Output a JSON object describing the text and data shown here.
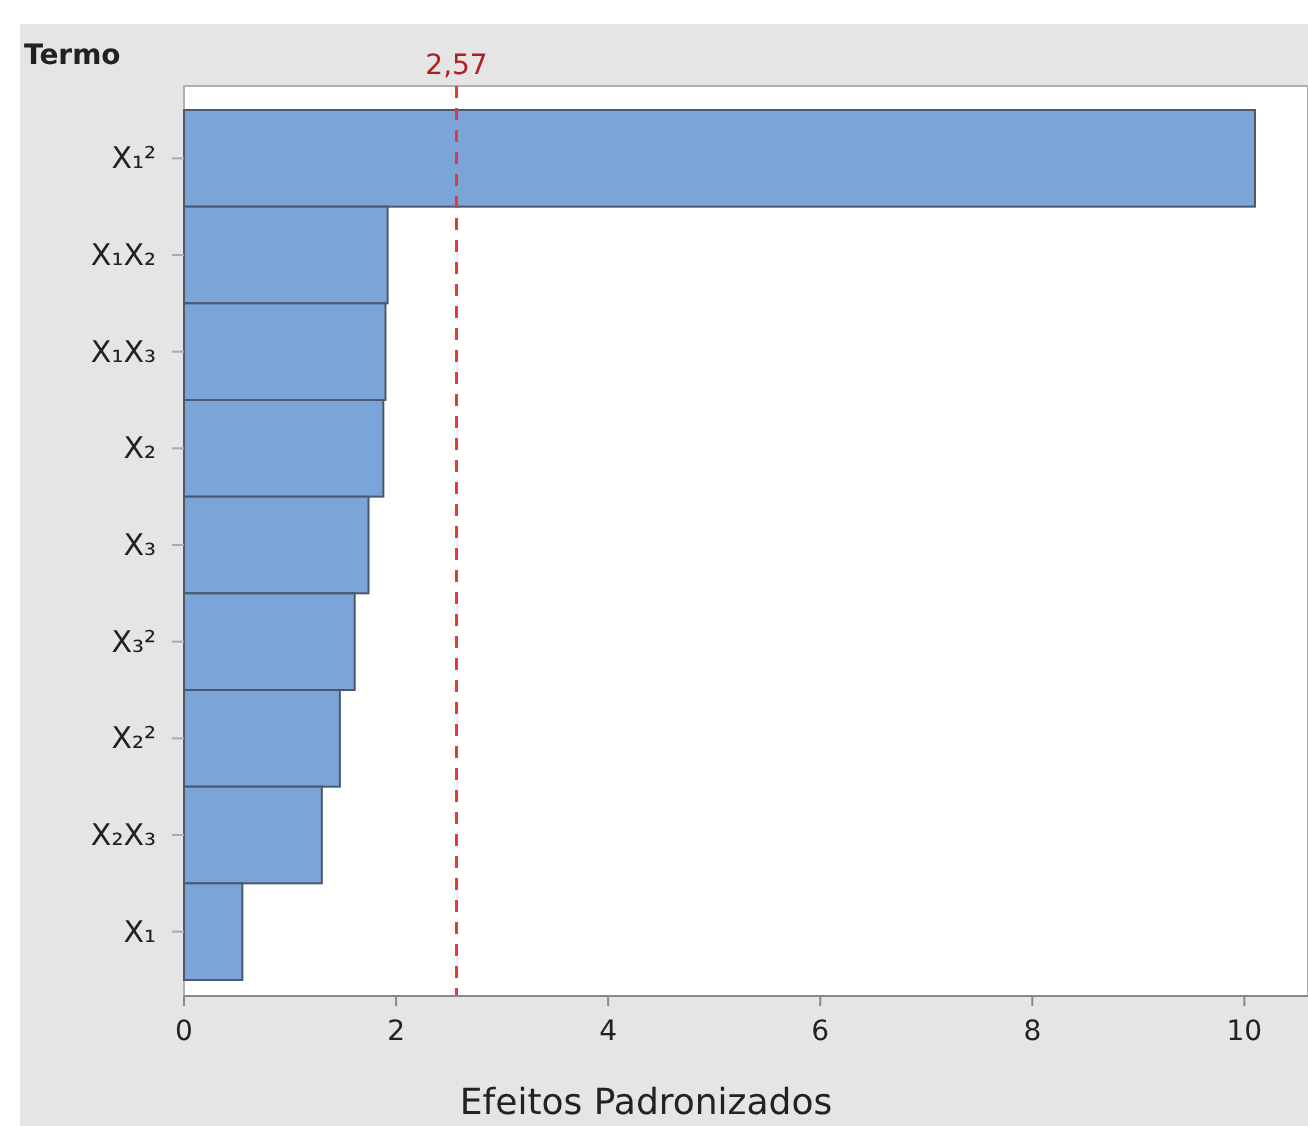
{
  "chart_data": {
    "type": "bar",
    "orientation": "horizontal",
    "ylabel": "Termo",
    "xlabel": "Efeitos Padronizados",
    "categories": [
      "X₁²",
      "X₁X₂",
      "X₁X₃",
      "X₂",
      "X₃",
      "X₃²",
      "X₂²",
      "X₂X₃",
      "X₁"
    ],
    "values": [
      10.1,
      1.92,
      1.9,
      1.88,
      1.74,
      1.61,
      1.47,
      1.3,
      0.55
    ],
    "color": "#7ba4d8",
    "xlim": [
      0,
      10.6
    ],
    "xticks": [
      0,
      2,
      4,
      6,
      8,
      10
    ],
    "ref_lines": [
      {
        "axis": "x",
        "value": 2.57,
        "label": "2,57",
        "color": "#e03c3c",
        "line_style": "dashed"
      }
    ],
    "grid": false
  }
}
